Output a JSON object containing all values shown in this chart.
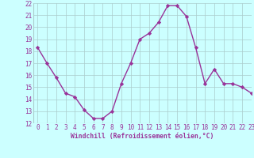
{
  "x": [
    0,
    1,
    2,
    3,
    4,
    5,
    6,
    7,
    8,
    9,
    10,
    11,
    12,
    13,
    14,
    15,
    16,
    17,
    18,
    19,
    20,
    21,
    22,
    23
  ],
  "y": [
    18.3,
    17.0,
    15.8,
    14.5,
    14.2,
    13.1,
    12.4,
    12.4,
    13.0,
    15.3,
    17.0,
    19.0,
    19.5,
    20.4,
    21.8,
    21.8,
    20.9,
    18.3,
    15.3,
    16.5,
    15.3,
    15.3,
    15.0,
    14.5
  ],
  "line_color": "#993399",
  "marker": "D",
  "marker_size": 2.2,
  "bg_color": "#ccffff",
  "grid_color": "#aacccc",
  "xlabel": "Windchill (Refroidissement éolien,°C)",
  "xlabel_color": "#993399",
  "tick_color": "#993399",
  "label_color": "#993399",
  "ylim": [
    12,
    22
  ],
  "xlim": [
    -0.5,
    23
  ],
  "yticks": [
    12,
    13,
    14,
    15,
    16,
    17,
    18,
    19,
    20,
    21,
    22
  ],
  "xticks": [
    0,
    1,
    2,
    3,
    4,
    5,
    6,
    7,
    8,
    9,
    10,
    11,
    12,
    13,
    14,
    15,
    16,
    17,
    18,
    19,
    20,
    21,
    22,
    23
  ],
  "xtick_labels": [
    "0",
    "1",
    "2",
    "3",
    "4",
    "5",
    "6",
    "7",
    "8",
    "9",
    "10",
    "11",
    "12",
    "13",
    "14",
    "15",
    "16",
    "17",
    "18",
    "19",
    "20",
    "21",
    "22",
    "23"
  ],
  "grid_linewidth": 0.5,
  "line_width": 1.0,
  "tick_fontsize": 5.5,
  "xlabel_fontsize": 5.8
}
